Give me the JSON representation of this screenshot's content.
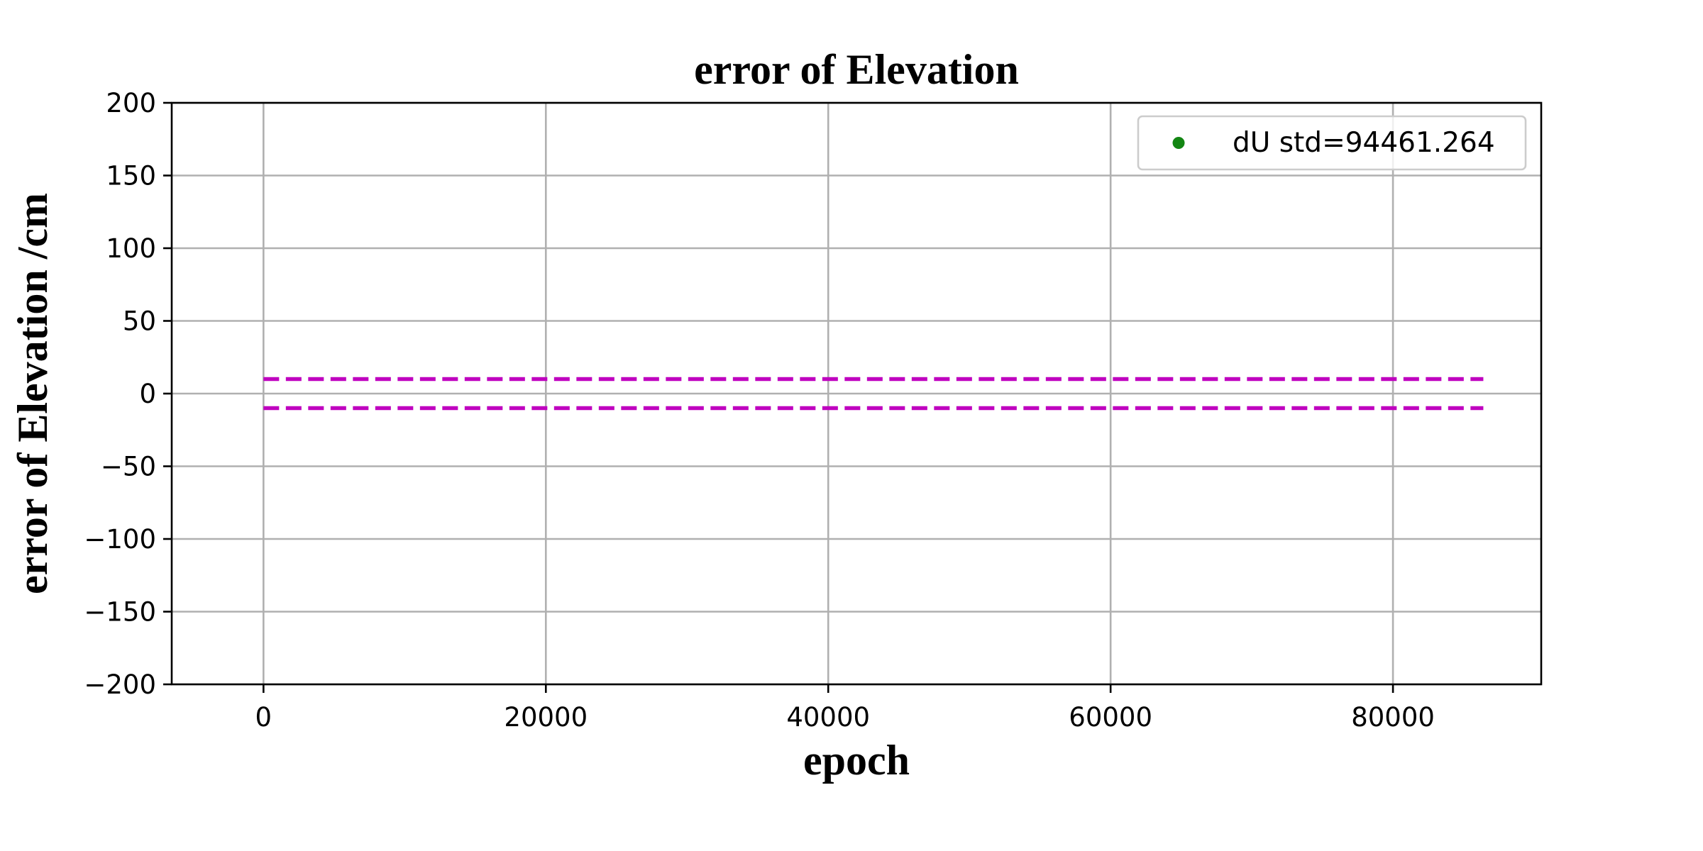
{
  "chart_data": {
    "type": "line",
    "title": "error of Elevation",
    "xlabel": "epoch",
    "ylabel": "error of Elevation /cm",
    "xlim": [
      -6500,
      90500
    ],
    "ylim": [
      -200,
      200
    ],
    "xticks": [
      0,
      20000,
      40000,
      60000,
      80000
    ],
    "xtick_labels": [
      "0",
      "20000",
      "40000",
      "60000",
      "80000"
    ],
    "yticks": [
      200,
      150,
      100,
      50,
      0,
      -50,
      -100,
      -150,
      -200
    ],
    "ytick_labels": [
      "200",
      "150",
      "100",
      "50",
      "0",
      "−50",
      "−100",
      "−150",
      "−200"
    ],
    "grid": true,
    "legend": {
      "placement": "top-right",
      "entries": [
        {
          "label": "dU std=94461.264",
          "marker": "dot",
          "color": "#138613"
        }
      ]
    },
    "series": [
      {
        "values": [],
        "marker": "dot",
        "color": "#138613"
      }
    ],
    "reference_lines": [
      {
        "y": 10,
        "x_range": [
          0,
          86400
        ],
        "style": "dashed",
        "color": "#bf00bf"
      },
      {
        "y": -10,
        "x_range": [
          0,
          86400
        ],
        "style": "dashed",
        "color": "#bf00bf"
      }
    ]
  }
}
